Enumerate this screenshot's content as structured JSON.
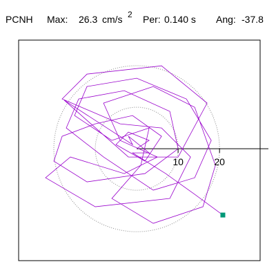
{
  "chart_data": {
    "type": "hodogram",
    "station": "PCNH",
    "max_label": "Max:",
    "max_value": 26.3,
    "max_unit": "cm/s",
    "max_unit_exp": "2",
    "per_label": "Per:",
    "per_value": "0.140 s",
    "ang_label": "Ang:",
    "ang_value": -37.8,
    "xlim": [
      -28.5,
      29.8
    ],
    "ylim": [
      -27,
      26.2
    ],
    "rticks": [
      10,
      20
    ],
    "color": "#9900cc",
    "end_marker_color": "#009977",
    "x": [
      0,
      3,
      -2,
      -5,
      2,
      6,
      -1,
      -10,
      -18,
      -20,
      -12,
      2,
      10,
      8,
      -3,
      -14,
      -17,
      -8,
      4,
      14,
      18,
      12,
      0,
      -12,
      -15,
      -6,
      3,
      1,
      -6,
      4,
      16,
      19,
      14,
      4,
      -8,
      -4,
      5,
      -3,
      -16,
      -22,
      -10,
      8,
      13,
      6,
      -4,
      -18,
      -12,
      6,
      17,
      10,
      -2,
      -17.5,
      -1,
      -2,
      3,
      -1,
      7,
      14,
      20.8
    ],
    "y": [
      0,
      2,
      4,
      1,
      -3,
      3,
      8,
      6,
      3,
      -3,
      -8,
      -6,
      0,
      9,
      14,
      12,
      5,
      -2,
      -10,
      -7,
      2,
      12,
      17,
      15,
      8,
      2,
      5,
      -4,
      -12,
      -18,
      -14,
      -4,
      10,
      15,
      11,
      2,
      -2,
      -6,
      -2,
      -7,
      -14,
      -12,
      -2,
      5,
      6,
      12,
      18,
      20,
      11,
      -2,
      -2,
      11.7,
      1,
      3,
      -1,
      -1,
      -6,
      -11,
      -16
    ]
  }
}
